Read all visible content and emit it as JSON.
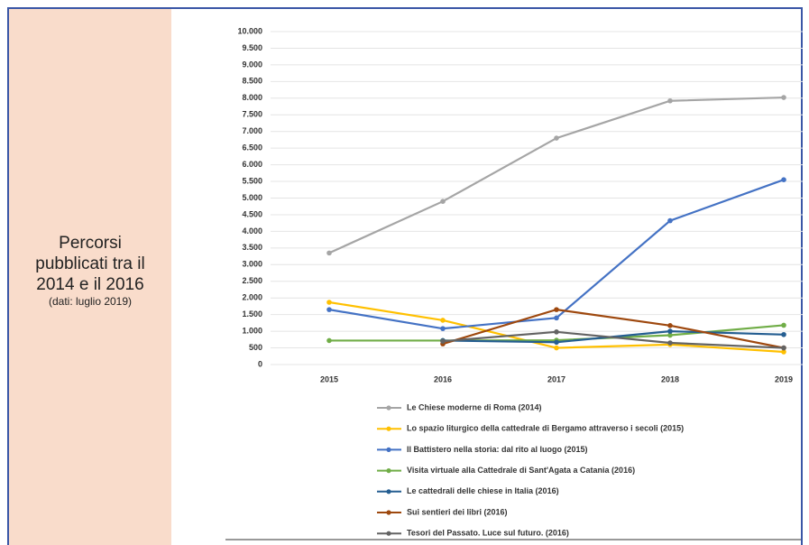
{
  "panel": {
    "lines": [
      "Percorsi",
      "pubblicati tra il",
      "2014 e il 2016"
    ],
    "note": "(dati: luglio 2019)"
  },
  "chart_data": {
    "type": "line",
    "categories": [
      "2015",
      "2016",
      "2017",
      "2018",
      "2019"
    ],
    "ylim": [
      0,
      10000
    ],
    "yticks": [
      0,
      500,
      {
        "value": 1000,
        "label": "1.000"
      },
      {
        "value": 1500,
        "label": "1.500"
      },
      {
        "value": 2000,
        "label": "2.000"
      },
      {
        "value": 2500,
        "label": "2.500"
      },
      {
        "value": 3000,
        "label": "3.000"
      },
      {
        "value": 3500,
        "label": "3.500"
      },
      {
        "value": 4000,
        "label": "4.000"
      },
      {
        "value": 4500,
        "label": "4.500"
      },
      {
        "value": 5000,
        "label": "5.000"
      },
      {
        "value": 5500,
        "label": "5.500"
      },
      {
        "value": 6000,
        "label": "6.000"
      },
      {
        "value": 6500,
        "label": "6.500"
      },
      {
        "value": 7000,
        "label": "7.000"
      },
      {
        "value": 7500,
        "label": "7.500"
      },
      {
        "value": 8000,
        "label": "8.000"
      },
      {
        "value": 8500,
        "label": "8.500"
      },
      {
        "value": 9000,
        "label": "9.000"
      },
      {
        "value": 9500,
        "label": "9.500"
      },
      {
        "value": 10000,
        "label": "10.000"
      }
    ],
    "grid": true,
    "series": [
      {
        "name": "Le Chiese moderne di Roma (2014)",
        "color": "#a5a5a5",
        "values": [
          3350,
          4900,
          6800,
          7920,
          8020
        ]
      },
      {
        "name": "Lo spazio liturgico della cattedrale di Bergamo attraverso i secoli (2015)",
        "color": "#ffc000",
        "values": [
          1870,
          1330,
          500,
          600,
          380
        ]
      },
      {
        "name": "Il Battistero nella storia: dal rito al luogo (2015)",
        "color": "#4472c4",
        "values": [
          1650,
          1080,
          1400,
          4320,
          5550
        ]
      },
      {
        "name": "Visita virtuale alla Cattedrale di Sant'Agata a Catania (2016)",
        "color": "#70ad47",
        "values": [
          720,
          720,
          730,
          880,
          1180
        ]
      },
      {
        "name": "Le cattedrali delle chiese in Italia (2016)",
        "color": "#255e91",
        "values": [
          null,
          720,
          670,
          1000,
          900
        ]
      },
      {
        "name": "Sui sentieri dei libri (2016)",
        "color": "#9e480e",
        "values": [
          null,
          620,
          1650,
          1170,
          500
        ]
      },
      {
        "name": "Tesori del Passato. Luce sul futuro. (2016)",
        "color": "#636363",
        "values": [
          null,
          700,
          980,
          650,
          500
        ]
      }
    ]
  }
}
